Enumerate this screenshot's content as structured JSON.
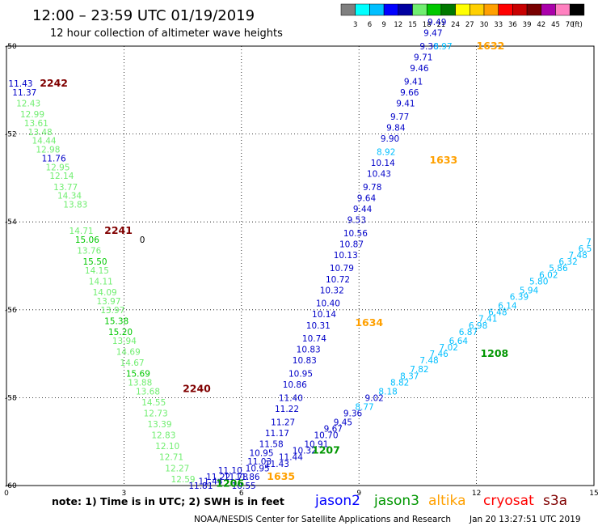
{
  "header": {
    "title": "12:00 – 23:59 UTC 01/19/2019",
    "subtitle": "12 hour collection of altimeter wave heights"
  },
  "colorbar": {
    "labels": [
      "3",
      "6",
      "9",
      "12",
      "15",
      "18",
      "21",
      "24",
      "27",
      "30",
      "33",
      "36",
      "39",
      "42",
      "45",
      "70"
    ],
    "unit": "(ft)",
    "colors": [
      "#7f7f7f",
      "#00ffff",
      "#00bfff",
      "#0000ff",
      "#0000a0",
      "#70ee70",
      "#00c800",
      "#007800",
      "#ffff00",
      "#ffd000",
      "#ffa000",
      "#ff0000",
      "#c80000",
      "#780000",
      "#aa00aa",
      "#ff80c0",
      "#000000"
    ]
  },
  "note": "note: 1) Time is in UTC; 2) SWH is in feet",
  "legend": [
    {
      "name": "jason2",
      "color": "#0000ff"
    },
    {
      "name": "jason3",
      "color": "#009600"
    },
    {
      "name": "altika",
      "color": "#ffa000"
    },
    {
      "name": "cryosat",
      "color": "#ff0000"
    },
    {
      "name": "s3a",
      "color": "#800000"
    }
  ],
  "footer": {
    "credit": "NOAA/NESDIS Center for Satellite Applications and Research",
    "timestamp": "Jan 20 13:27:51 UTC 2019"
  },
  "chart_data": {
    "type": "scatter",
    "xlim": [
      0,
      15
    ],
    "ylim": [
      -60,
      -50
    ],
    "x_ticks": [
      0,
      3,
      6,
      9,
      12,
      15
    ],
    "y_ticks": [
      -50,
      -52,
      -54,
      -56,
      -58,
      -60
    ],
    "grid": true,
    "stray_label": {
      "text": "0",
      "x": 3.4,
      "y": -54.4
    },
    "pass_labels": [
      {
        "text": "1632",
        "x": 12.0,
        "y": -50.0,
        "color": "#ffa000"
      },
      {
        "text": "2242",
        "x": 0.85,
        "y": -50.85,
        "color": "#800000"
      },
      {
        "text": "1633",
        "x": 10.8,
        "y": -52.6,
        "color": "#ffa000"
      },
      {
        "text": "2241",
        "x": 2.5,
        "y": -54.2,
        "color": "#800000"
      },
      {
        "text": "1634",
        "x": 8.9,
        "y": -56.3,
        "color": "#ffa000"
      },
      {
        "text": "1208",
        "x": 12.1,
        "y": -57.0,
        "color": "#009600"
      },
      {
        "text": "2240",
        "x": 4.5,
        "y": -57.8,
        "color": "#800000"
      },
      {
        "text": "1207",
        "x": 7.8,
        "y": -59.2,
        "color": "#009600"
      },
      {
        "text": "1635",
        "x": 6.65,
        "y": -59.8,
        "color": "#ffa000"
      },
      {
        "text": "1206",
        "x": 5.35,
        "y": -59.95,
        "color": "#009600"
      }
    ],
    "series": [
      {
        "track": "s3a 2242-2240",
        "points": [
          {
            "x": 0.05,
            "y": -50.85,
            "v": "11.43",
            "c": "#0000c8"
          },
          {
            "x": 0.15,
            "y": -51.05,
            "v": "11.37",
            "c": "#0000c8"
          },
          {
            "x": 0.25,
            "y": -51.3,
            "v": "12.43",
            "c": "#70ee70"
          },
          {
            "x": 0.35,
            "y": -51.55,
            "v": "12.99",
            "c": "#70ee70"
          },
          {
            "x": 0.45,
            "y": -51.75,
            "v": "13.61",
            "c": "#70ee70"
          },
          {
            "x": 0.55,
            "y": -51.95,
            "v": "13.48",
            "c": "#70ee70"
          },
          {
            "x": 0.65,
            "y": -52.15,
            "v": "14.44",
            "c": "#70ee70"
          },
          {
            "x": 0.75,
            "y": -52.35,
            "v": "12.98",
            "c": "#70ee70"
          },
          {
            "x": 0.9,
            "y": -52.55,
            "v": "11.76",
            "c": "#0000c8"
          },
          {
            "x": 1.0,
            "y": -52.75,
            "v": "12.95",
            "c": "#70ee70"
          },
          {
            "x": 1.1,
            "y": -52.95,
            "v": "12.14",
            "c": "#70ee70"
          },
          {
            "x": 1.2,
            "y": -53.2,
            "v": "13.77",
            "c": "#70ee70"
          },
          {
            "x": 1.3,
            "y": -53.4,
            "v": "14.34",
            "c": "#70ee70"
          },
          {
            "x": 1.45,
            "y": -53.6,
            "v": "13.83",
            "c": "#70ee70"
          },
          {
            "x": 1.6,
            "y": -54.2,
            "v": "14.71",
            "c": "#70ee70"
          },
          {
            "x": 1.75,
            "y": -54.4,
            "v": "15.06",
            "c": "#00c800"
          },
          {
            "x": 1.8,
            "y": -54.65,
            "v": "13.76",
            "c": "#70ee70"
          },
          {
            "x": 1.95,
            "y": -54.9,
            "v": "15.50",
            "c": "#00c800"
          },
          {
            "x": 2.0,
            "y": -55.1,
            "v": "14.15",
            "c": "#70ee70"
          },
          {
            "x": 2.1,
            "y": -55.35,
            "v": "14.11",
            "c": "#70ee70"
          },
          {
            "x": 2.2,
            "y": -55.6,
            "v": "14.09",
            "c": "#70ee70"
          },
          {
            "x": 2.3,
            "y": -55.8,
            "v": "13.97",
            "c": "#70ee70"
          },
          {
            "x": 2.4,
            "y": -56.0,
            "v": "13.97",
            "c": "#70ee70"
          },
          {
            "x": 2.5,
            "y": -56.25,
            "v": "15.38",
            "c": "#00c800"
          },
          {
            "x": 2.6,
            "y": -56.5,
            "v": "15.20",
            "c": "#00c800"
          },
          {
            "x": 2.7,
            "y": -56.7,
            "v": "13.94",
            "c": "#70ee70"
          },
          {
            "x": 2.8,
            "y": -56.95,
            "v": "14.69",
            "c": "#70ee70"
          },
          {
            "x": 2.9,
            "y": -57.2,
            "v": "14.67",
            "c": "#70ee70"
          },
          {
            "x": 3.05,
            "y": -57.45,
            "v": "15.69",
            "c": "#00c800"
          },
          {
            "x": 3.1,
            "y": -57.65,
            "v": "13.88",
            "c": "#70ee70"
          },
          {
            "x": 3.3,
            "y": -57.85,
            "v": "13.68",
            "c": "#70ee70"
          },
          {
            "x": 3.45,
            "y": -58.1,
            "v": "14.55",
            "c": "#70ee70"
          },
          {
            "x": 3.5,
            "y": -58.35,
            "v": "12.73",
            "c": "#70ee70"
          },
          {
            "x": 3.6,
            "y": -58.6,
            "v": "13.39",
            "c": "#70ee70"
          },
          {
            "x": 3.7,
            "y": -58.85,
            "v": "12.83",
            "c": "#70ee70"
          },
          {
            "x": 3.8,
            "y": -59.1,
            "v": "12.10",
            "c": "#70ee70"
          },
          {
            "x": 3.9,
            "y": -59.35,
            "v": "12.71",
            "c": "#70ee70"
          },
          {
            "x": 4.05,
            "y": -59.6,
            "v": "12.27",
            "c": "#70ee70"
          },
          {
            "x": 4.2,
            "y": -59.85,
            "v": "12.59",
            "c": "#70ee70"
          }
        ]
      },
      {
        "track": "jason2 1635-1632",
        "points": [
          {
            "x": 4.65,
            "y": -60.0,
            "v": "11.81",
            "c": "#0000c8"
          },
          {
            "x": 4.9,
            "y": -59.9,
            "v": "11.44",
            "c": "#0000c8"
          },
          {
            "x": 5.1,
            "y": -59.8,
            "v": "11.22",
            "c": "#0000c8"
          },
          {
            "x": 5.4,
            "y": -59.65,
            "v": "11.10",
            "c": "#0000c8"
          },
          {
            "x": 5.55,
            "y": -59.8,
            "v": "11.78",
            "c": "#0000c8"
          },
          {
            "x": 5.75,
            "y": -60.0,
            "v": "10.55",
            "c": "#0000c8"
          },
          {
            "x": 6.1,
            "y": -59.6,
            "v": "10.95",
            "c": "#0000c8"
          },
          {
            "x": 6.15,
            "y": -59.45,
            "v": "11.03",
            "c": "#0000c8"
          },
          {
            "x": 6.2,
            "y": -59.25,
            "v": "10.95",
            "c": "#0000c8"
          },
          {
            "x": 6.45,
            "y": -59.05,
            "v": "11.58",
            "c": "#0000c8"
          },
          {
            "x": 6.6,
            "y": -58.8,
            "v": "11.17",
            "c": "#0000c8"
          },
          {
            "x": 6.75,
            "y": -58.55,
            "v": "11.27",
            "c": "#0000c8"
          },
          {
            "x": 6.85,
            "y": -58.25,
            "v": "11.22",
            "c": "#0000c8"
          },
          {
            "x": 6.95,
            "y": -58.0,
            "v": "11.40",
            "c": "#0000c8"
          },
          {
            "x": 7.05,
            "y": -57.7,
            "v": "10.86",
            "c": "#0000c8"
          },
          {
            "x": 7.2,
            "y": -57.45,
            "v": "10.95",
            "c": "#0000c8"
          },
          {
            "x": 7.3,
            "y": -57.15,
            "v": "10.83",
            "c": "#0000c8"
          },
          {
            "x": 7.4,
            "y": -56.9,
            "v": "10.83",
            "c": "#0000c8"
          },
          {
            "x": 7.55,
            "y": -56.65,
            "v": "10.74",
            "c": "#0000c8"
          },
          {
            "x": 7.65,
            "y": -56.35,
            "v": "10.31",
            "c": "#0000c8"
          },
          {
            "x": 7.8,
            "y": -56.1,
            "v": "10.14",
            "c": "#0000c8"
          },
          {
            "x": 7.9,
            "y": -55.85,
            "v": "10.40",
            "c": "#0000c8"
          },
          {
            "x": 8.0,
            "y": -55.55,
            "v": "10.32",
            "c": "#0000c8"
          },
          {
            "x": 8.15,
            "y": -55.3,
            "v": "10.72",
            "c": "#0000c8"
          },
          {
            "x": 8.25,
            "y": -55.05,
            "v": "10.79",
            "c": "#0000c8"
          },
          {
            "x": 8.35,
            "y": -54.75,
            "v": "10.13",
            "c": "#0000c8"
          },
          {
            "x": 8.5,
            "y": -54.5,
            "v": "10.87",
            "c": "#0000c8"
          },
          {
            "x": 8.6,
            "y": -54.25,
            "v": "10.56",
            "c": "#0000c8"
          },
          {
            "x": 8.7,
            "y": -53.95,
            "v": "9.53",
            "c": "#0000c8"
          },
          {
            "x": 8.85,
            "y": -53.7,
            "v": "9.44",
            "c": "#0000c8"
          },
          {
            "x": 8.95,
            "y": -53.45,
            "v": "9.64",
            "c": "#0000c8"
          },
          {
            "x": 9.1,
            "y": -53.2,
            "v": "9.78",
            "c": "#0000c8"
          },
          {
            "x": 9.2,
            "y": -52.9,
            "v": "10.43",
            "c": "#0000c8"
          },
          {
            "x": 9.3,
            "y": -52.65,
            "v": "10.14",
            "c": "#0000c8"
          },
          {
            "x": 9.45,
            "y": -52.4,
            "v": "8.92",
            "c": "#00bfff"
          },
          {
            "x": 9.55,
            "y": -52.1,
            "v": "9.90",
            "c": "#0000c8"
          },
          {
            "x": 9.7,
            "y": -51.85,
            "v": "9.84",
            "c": "#0000c8"
          },
          {
            "x": 9.8,
            "y": -51.6,
            "v": "9.77",
            "c": "#0000c8"
          },
          {
            "x": 9.95,
            "y": -51.3,
            "v": "9.41",
            "c": "#0000c8"
          },
          {
            "x": 10.05,
            "y": -51.05,
            "v": "9.66",
            "c": "#0000c8"
          },
          {
            "x": 10.15,
            "y": -50.8,
            "v": "9.41",
            "c": "#0000c8"
          },
          {
            "x": 10.3,
            "y": -50.5,
            "v": "9.46",
            "c": "#0000c8"
          },
          {
            "x": 10.4,
            "y": -50.25,
            "v": "9.71",
            "c": "#0000c8"
          },
          {
            "x": 10.55,
            "y": -50.0,
            "v": "9.36",
            "c": "#0000c8"
          },
          {
            "x": 10.65,
            "y": -49.7,
            "v": "9.47",
            "c": "#0000c8"
          },
          {
            "x": 10.75,
            "y": -49.45,
            "v": "9.49",
            "c": "#0000c8"
          },
          {
            "x": 10.9,
            "y": -50.0,
            "v": "8.97",
            "c": "#00bfff"
          }
        ]
      },
      {
        "track": "jason3 1207-1208",
        "points": [
          {
            "x": 5.85,
            "y": -59.8,
            "v": "11.86",
            "c": "#0000c8"
          },
          {
            "x": 6.6,
            "y": -59.5,
            "v": "11.43",
            "c": "#0000c8"
          },
          {
            "x": 6.95,
            "y": -59.35,
            "v": "11.44",
            "c": "#0000c8"
          },
          {
            "x": 7.3,
            "y": -59.2,
            "v": "10.32",
            "c": "#0000c8"
          },
          {
            "x": 7.6,
            "y": -59.05,
            "v": "10.91",
            "c": "#0000c8"
          },
          {
            "x": 7.85,
            "y": -58.85,
            "v": "10.70",
            "c": "#0000c8"
          },
          {
            "x": 8.1,
            "y": -58.7,
            "v": "9.67",
            "c": "#0000c8"
          },
          {
            "x": 8.35,
            "y": -58.55,
            "v": "9.45",
            "c": "#0000c8"
          },
          {
            "x": 8.6,
            "y": -58.35,
            "v": "9.36",
            "c": "#0000c8"
          },
          {
            "x": 8.9,
            "y": -58.2,
            "v": "8.77",
            "c": "#00bfff"
          },
          {
            "x": 9.15,
            "y": -58.0,
            "v": "9.02",
            "c": "#0000c8"
          },
          {
            "x": 9.5,
            "y": -57.85,
            "v": "8.18",
            "c": "#00bfff"
          },
          {
            "x": 9.8,
            "y": -57.65,
            "v": "8.82",
            "c": "#00bfff"
          },
          {
            "x": 10.05,
            "y": -57.5,
            "v": "8.37",
            "c": "#00bfff"
          },
          {
            "x": 10.3,
            "y": -57.35,
            "v": "7.82",
            "c": "#00bfff"
          },
          {
            "x": 10.55,
            "y": -57.15,
            "v": "7.48",
            "c": "#00bfff"
          },
          {
            "x": 10.8,
            "y": -57.0,
            "v": "7.46",
            "c": "#00bfff"
          },
          {
            "x": 11.05,
            "y": -56.85,
            "v": "7.02",
            "c": "#00bfff"
          },
          {
            "x": 11.3,
            "y": -56.7,
            "v": "6.64",
            "c": "#00bfff"
          },
          {
            "x": 11.55,
            "y": -56.5,
            "v": "6.87",
            "c": "#00bfff"
          },
          {
            "x": 11.8,
            "y": -56.35,
            "v": "6.98",
            "c": "#00bfff"
          },
          {
            "x": 12.05,
            "y": -56.2,
            "v": "7.41",
            "c": "#00bfff"
          },
          {
            "x": 12.3,
            "y": -56.05,
            "v": "6.48",
            "c": "#00bfff"
          },
          {
            "x": 12.55,
            "y": -55.9,
            "v": "6.14",
            "c": "#00bfff"
          },
          {
            "x": 12.85,
            "y": -55.7,
            "v": "6.39",
            "c": "#00bfff"
          },
          {
            "x": 13.1,
            "y": -55.55,
            "v": "5.94",
            "c": "#00bfff"
          },
          {
            "x": 13.35,
            "y": -55.35,
            "v": "5.80",
            "c": "#00bfff"
          },
          {
            "x": 13.6,
            "y": -55.2,
            "v": "6.02",
            "c": "#00bfff"
          },
          {
            "x": 13.85,
            "y": -55.05,
            "v": "5.86",
            "c": "#00bfff"
          },
          {
            "x": 14.1,
            "y": -54.9,
            "v": "6.32",
            "c": "#00bfff"
          },
          {
            "x": 14.35,
            "y": -54.75,
            "v": "7.48",
            "c": "#00bfff"
          },
          {
            "x": 14.6,
            "y": -54.6,
            "v": "6.5",
            "c": "#00bfff"
          },
          {
            "x": 14.8,
            "y": -54.45,
            "v": "7",
            "c": "#00bfff"
          }
        ]
      }
    ]
  }
}
